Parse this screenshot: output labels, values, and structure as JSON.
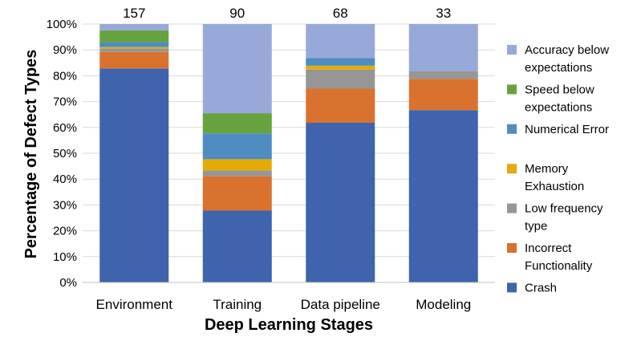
{
  "chart_data": {
    "type": "bar",
    "stacked": true,
    "normalized": true,
    "xlabel": "Deep Learning Stages",
    "ylabel": "Percentage of Defect Types",
    "ylim": [
      0,
      100
    ],
    "yticks": [
      "0%",
      "10%",
      "20%",
      "30%",
      "40%",
      "50%",
      "60%",
      "70%",
      "80%",
      "90%",
      "100%"
    ],
    "categories": [
      "Environment",
      "Training",
      "Data pipeline",
      "Modeling"
    ],
    "totals": [
      "157",
      "90",
      "68",
      "33"
    ],
    "legend_position": "right",
    "series": [
      {
        "name": "Crash",
        "color": "#3f63ad",
        "values": [
          82.8,
          27.8,
          61.8,
          66.7
        ]
      },
      {
        "name": "Incorrect Functionality",
        "color": "#d9722e",
        "values": [
          6.4,
          13.3,
          13.2,
          12.1
        ]
      },
      {
        "name": "Low frequency type",
        "color": "#969696",
        "values": [
          1.3,
          2.2,
          7.4,
          3.0
        ]
      },
      {
        "name": "Memory Exhaustion",
        "color": "#e4ab08",
        "values": [
          0.6,
          4.4,
          1.5,
          0.0
        ]
      },
      {
        "name": "Numerical Error",
        "color": "#4e8cc2",
        "values": [
          1.9,
          10.0,
          2.9,
          0.0
        ]
      },
      {
        "name": "Speed below expectations",
        "color": "#66a33e",
        "values": [
          4.5,
          7.8,
          0.0,
          0.0
        ]
      },
      {
        "name": "Accuracy below expectations",
        "color": "#97a9d9",
        "values": [
          2.5,
          34.5,
          13.2,
          18.2
        ]
      }
    ],
    "legend": [
      {
        "series": 6,
        "lines": [
          "Accuracy below",
          "expectations"
        ]
      },
      {
        "series": 5,
        "lines": [
          "Speed below",
          "expectations"
        ]
      },
      {
        "series": 4,
        "lines": [
          "Numerical Error"
        ]
      },
      {
        "series": 3,
        "lines": [
          "Memory",
          "Exhaustion"
        ]
      },
      {
        "series": 2,
        "lines": [
          "Low frequency",
          "type"
        ]
      },
      {
        "series": 1,
        "lines": [
          "Incorrect",
          "Functionality"
        ]
      },
      {
        "series": 0,
        "lines": [
          "Crash"
        ]
      }
    ]
  }
}
